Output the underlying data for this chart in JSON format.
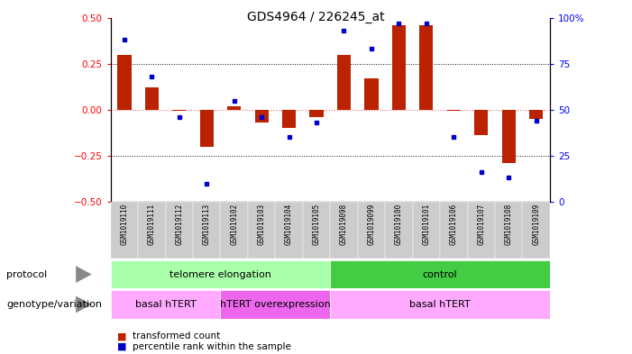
{
  "title": "GDS4964 / 226245_at",
  "samples": [
    "GSM1019110",
    "GSM1019111",
    "GSM1019112",
    "GSM1019113",
    "GSM1019102",
    "GSM1019103",
    "GSM1019104",
    "GSM1019105",
    "GSM1019098",
    "GSM1019099",
    "GSM1019100",
    "GSM1019101",
    "GSM1019106",
    "GSM1019107",
    "GSM1019108",
    "GSM1019109"
  ],
  "bar_values": [
    0.3,
    0.12,
    -0.005,
    -0.2,
    0.02,
    -0.07,
    -0.1,
    -0.04,
    0.3,
    0.17,
    0.46,
    0.46,
    -0.005,
    -0.14,
    -0.29,
    -0.05
  ],
  "dot_values": [
    88,
    68,
    46,
    10,
    55,
    46,
    35,
    43,
    93,
    83,
    97,
    97,
    35,
    16,
    13,
    44
  ],
  "ylim": [
    -0.5,
    0.5
  ],
  "y2lim": [
    0,
    100
  ],
  "yticks": [
    -0.5,
    -0.25,
    0.0,
    0.25,
    0.5
  ],
  "y2ticks": [
    0,
    25,
    50,
    75,
    100
  ],
  "bar_color": "#BB2200",
  "dot_color": "#0000CC",
  "zero_line_color": "#FF6666",
  "hline_color": "#111111",
  "protocol_light_color": "#AAFFAA",
  "protocol_dark_color": "#44CC44",
  "genotype_light_color": "#FFAAFF",
  "genotype_dark_color": "#EE66EE",
  "protocol_labels": [
    "telomere elongation",
    "control"
  ],
  "protocol_ranges": [
    [
      0,
      7
    ],
    [
      8,
      15
    ]
  ],
  "genotype_labels": [
    "basal hTERT",
    "hTERT overexpression",
    "basal hTERT"
  ],
  "genotype_ranges": [
    [
      0,
      3
    ],
    [
      4,
      7
    ],
    [
      8,
      15
    ]
  ],
  "legend_bar": "transformed count",
  "legend_dot": "percentile rank within the sample",
  "protocol_row_label": "protocol",
  "genotype_row_label": "genotype/variation"
}
